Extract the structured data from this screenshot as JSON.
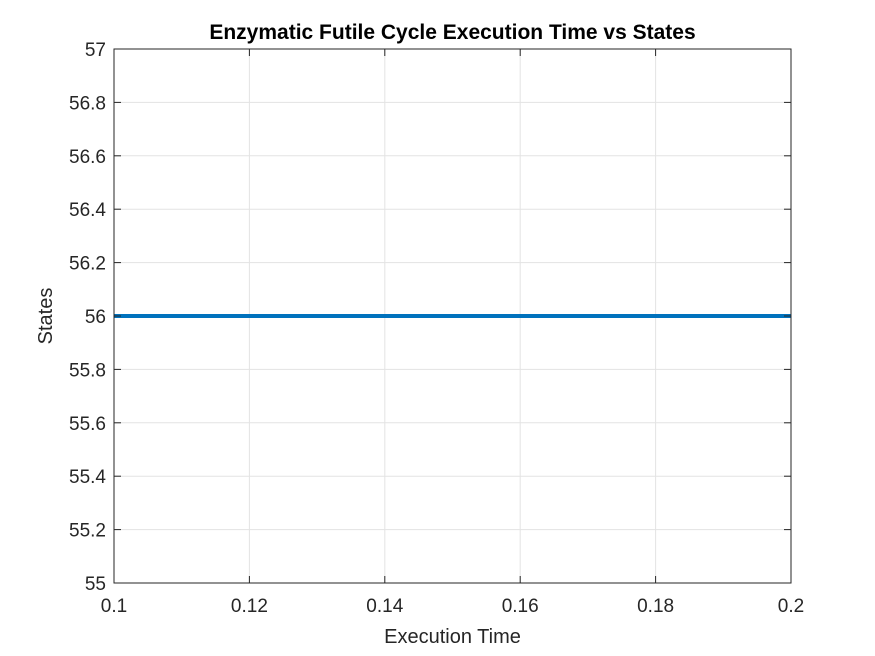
{
  "chart_data": {
    "type": "line",
    "title": "Enzymatic Futile Cycle Execution Time vs States",
    "xlabel": "Execution Time",
    "ylabel": "States",
    "xlim": [
      0.1,
      0.2
    ],
    "ylim": [
      55,
      57
    ],
    "xticks": [
      0.1,
      0.12,
      0.14,
      0.16,
      0.18,
      0.2
    ],
    "xtick_labels": [
      "0.1",
      "0.12",
      "0.14",
      "0.16",
      "0.18",
      "0.2"
    ],
    "yticks": [
      55,
      55.2,
      55.4,
      55.6,
      55.8,
      56,
      56.2,
      56.4,
      56.6,
      56.8,
      57
    ],
    "ytick_labels": [
      "55",
      "55.2",
      "55.4",
      "55.6",
      "55.8",
      "56",
      "56.2",
      "56.4",
      "56.6",
      "56.8",
      "57"
    ],
    "grid": true,
    "series": [
      {
        "color": "#0072bd",
        "x": [
          0.1,
          0.2
        ],
        "y": [
          56,
          56
        ]
      }
    ]
  }
}
